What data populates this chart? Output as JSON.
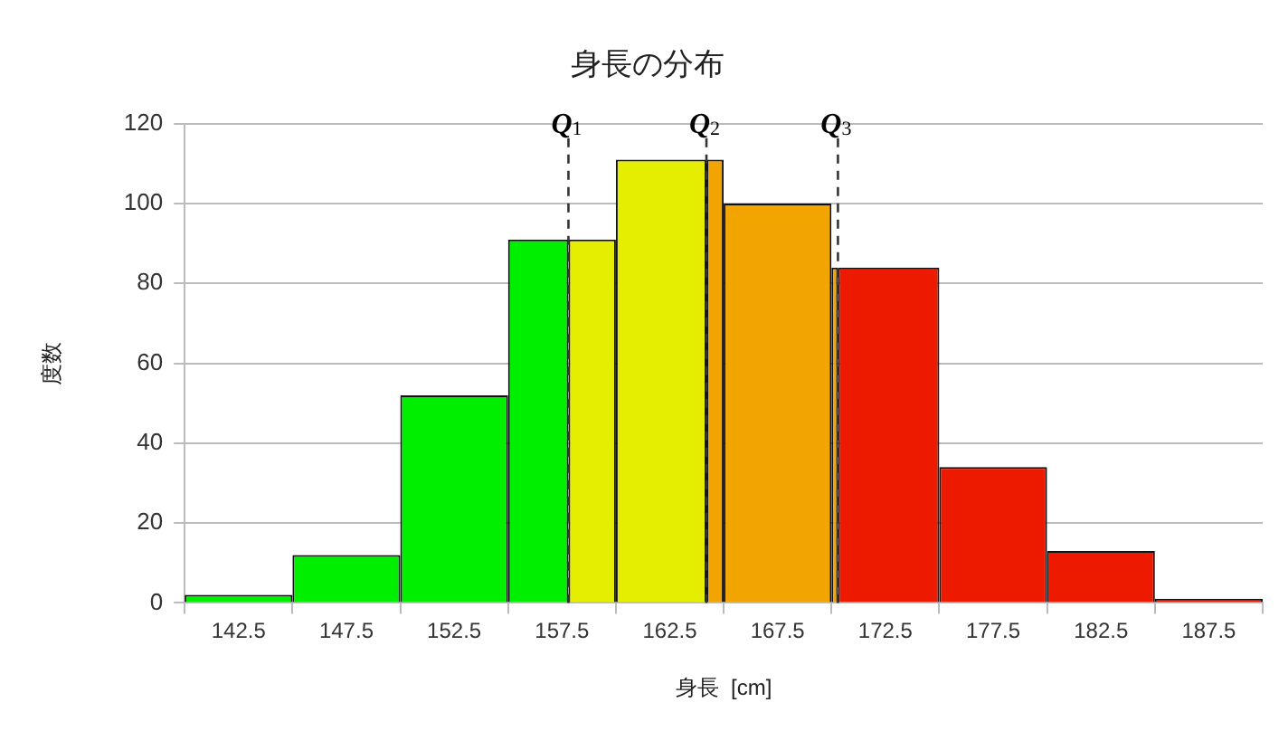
{
  "chart_data": {
    "type": "histogram",
    "title": "身長の分布",
    "xlabel": "身長  [cm]",
    "ylabel": "度数",
    "bins": [
      140,
      145,
      150,
      155,
      157.8,
      160,
      164.2,
      165,
      170,
      170.3,
      175,
      180,
      185,
      190
    ],
    "values": [
      2,
      12,
      52,
      91,
      91,
      111,
      111,
      100,
      84,
      84,
      34,
      13,
      1
    ],
    "colors": [
      "#00ee00",
      "#00ee00",
      "#00ee00",
      "#00ee00",
      "#e6ee00",
      "#e6ee00",
      "#f2a400",
      "#f2a400",
      "#f2a400",
      "#ee1a00",
      "#ee1a00",
      "#ee1a00",
      "#ee1a00"
    ],
    "xlim": [
      140,
      190
    ],
    "xticks": [
      142.5,
      147.5,
      152.5,
      157.5,
      162.5,
      167.5,
      172.5,
      177.5,
      182.5,
      187.5
    ],
    "ylim": [
      0,
      120
    ],
    "yticks": [
      0,
      20,
      40,
      60,
      80,
      100,
      120
    ],
    "grid": "y",
    "legend": false,
    "ref_lines": [
      {
        "axis": "x",
        "value": 157.8,
        "label": "Q$_{1}$",
        "line_style": "dashed",
        "color": "#333333"
      },
      {
        "axis": "x",
        "value": 164.2,
        "label": "Q$_{2}$",
        "line_style": "dashed",
        "color": "#333333"
      },
      {
        "axis": "x",
        "value": 170.3,
        "label": "Q$_{3}$",
        "line_style": "dashed",
        "color": "#333333"
      }
    ]
  }
}
